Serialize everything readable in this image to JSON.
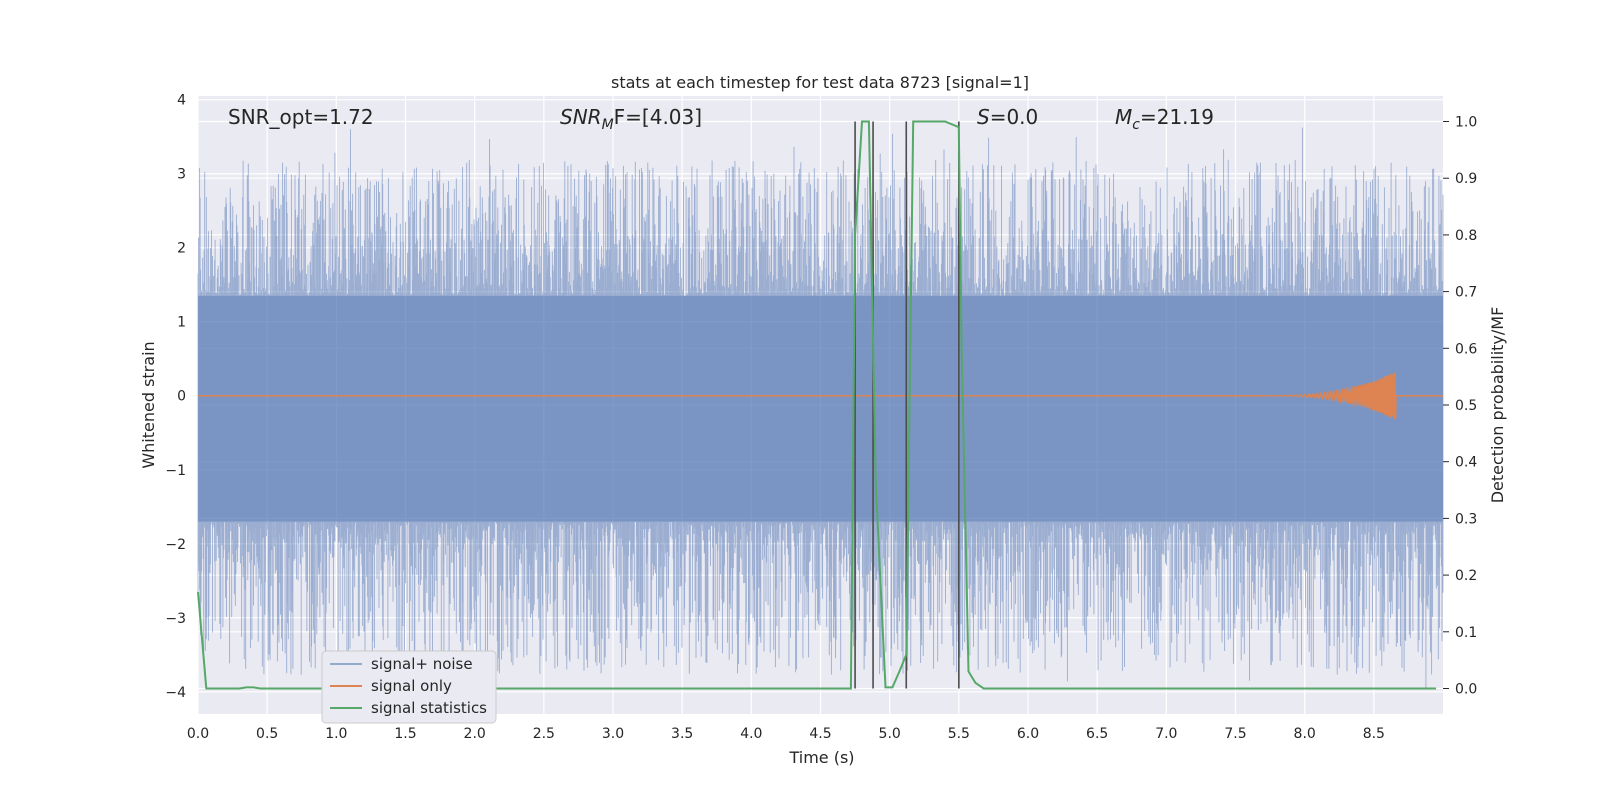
{
  "chart_data": {
    "type": "line",
    "title": "stats at each timestep for test data 8723 [signal=1]",
    "xlabel": "Time (s)",
    "ylabel_left": "Whitened strain",
    "ylabel_right": "Detection probability/MF",
    "xlim": [
      0,
      9
    ],
    "ylim_left": [
      -4.3,
      4.05
    ],
    "ylim_right": [
      -0.045,
      1.045
    ],
    "x_ticks": [
      "0.0",
      "0.5",
      "1.0",
      "1.5",
      "2.0",
      "2.5",
      "3.0",
      "3.5",
      "4.0",
      "4.5",
      "5.0",
      "5.5",
      "6.0",
      "6.5",
      "7.0",
      "7.5",
      "8.0",
      "8.5"
    ],
    "x_tick_values": [
      0,
      0.5,
      1,
      1.5,
      2,
      2.5,
      3,
      3.5,
      4,
      4.5,
      5,
      5.5,
      6,
      6.5,
      7,
      7.5,
      8,
      8.5
    ],
    "y_left_ticks": [
      "4",
      "3",
      "2",
      "1",
      "0",
      "−1",
      "−2",
      "−3",
      "−4"
    ],
    "y_left_tick_values": [
      4,
      3,
      2,
      1,
      0,
      -1,
      -2,
      -3,
      -4
    ],
    "y_right_ticks": [
      "1.0",
      "0.9",
      "0.8",
      "0.7",
      "0.6",
      "0.5",
      "0.4",
      "0.3",
      "0.2",
      "0.1",
      "0.0"
    ],
    "y_right_tick_values": [
      1,
      0.9,
      0.8,
      0.7,
      0.6,
      0.5,
      0.4,
      0.3,
      0.2,
      0.1,
      0
    ],
    "grid": true,
    "legend_position": "lower-left",
    "annotations": {
      "snr_opt": "SNR_opt=1.72",
      "snr_mf_symbol": "SNR",
      "snr_mf_sub": "M",
      "snr_mf_rest": "F=[4.03]",
      "s_symbol": "S",
      "s_rest": "=0.0",
      "mc_symbol": "M",
      "mc_sub": "c",
      "mc_rest": "=21.19"
    },
    "series": [
      {
        "name": "signal+ noise",
        "color": "#4c72b0",
        "axis": "left",
        "description_values": {
          "envelope_typical_upper": 1.35,
          "envelope_typical_lower": -1.7,
          "peaks_max": 3.65,
          "peaks_min": -4.0
        }
      },
      {
        "name": "signal only",
        "color": "#dd8452",
        "axis": "left",
        "chirp_start": 7.6,
        "chirp_end": 8.66,
        "chirp_peak_amplitude": 0.33
      },
      {
        "name": "signal statistics",
        "color": "#55a868",
        "axis": "right",
        "x": [
          0,
          0.06,
          0.1,
          0.2,
          0.3,
          0.35,
          0.4,
          0.45,
          0.5,
          4.72,
          4.75,
          4.8,
          4.85,
          4.9,
          4.97,
          5.02,
          5.07,
          5.12,
          5.17,
          5.2,
          5.3,
          5.4,
          5.5,
          5.52,
          5.57,
          5.62,
          5.68,
          8.95
        ],
        "y": [
          0.17,
          0.0,
          0.0,
          0.0,
          0.0,
          0.002,
          0.002,
          0.0,
          0.0,
          0.0,
          0.8,
          1.0,
          1.0,
          0.36,
          0.002,
          0.002,
          0.03,
          0.06,
          1.0,
          1.0,
          1.0,
          1.0,
          0.99,
          0.6,
          0.03,
          0.01,
          0.0,
          0.0
        ]
      }
    ],
    "vertical_lines": [
      4.75,
      4.88,
      5.12,
      5.5
    ],
    "vertical_lines_color": "#4d4d4d",
    "vertical_lines_top": 1.0,
    "vertical_lines_bottom": 0.0
  }
}
